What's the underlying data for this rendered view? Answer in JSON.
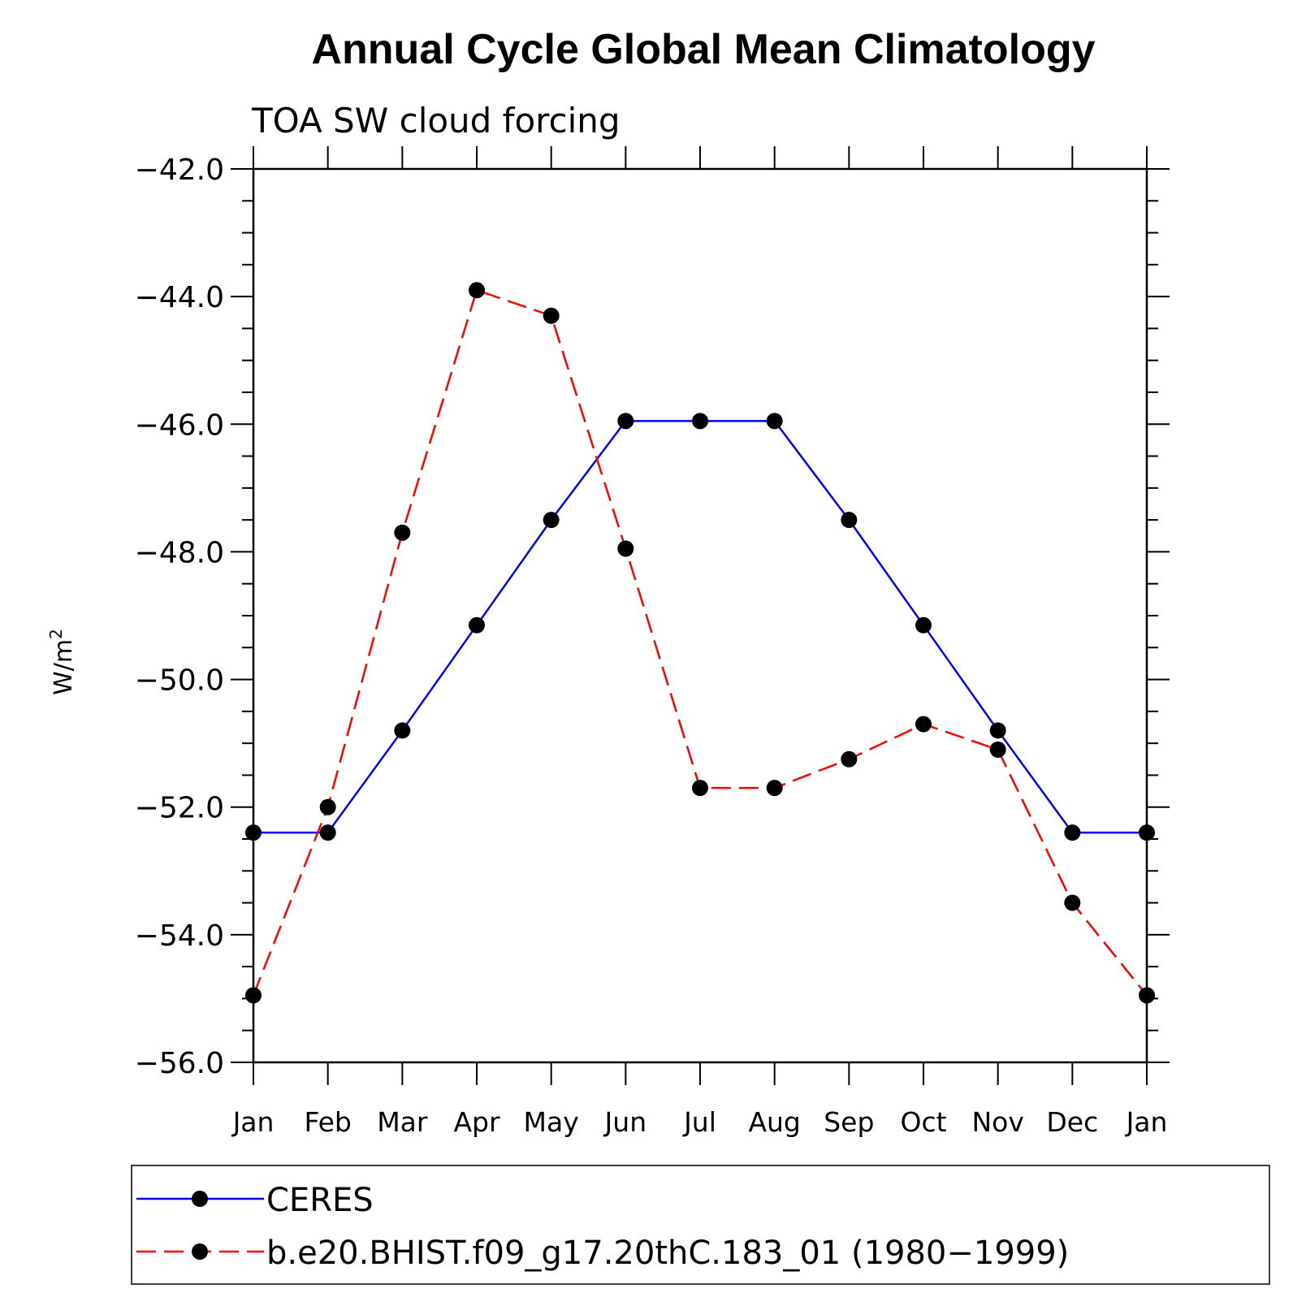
{
  "chart_data": {
    "type": "line",
    "title": "Annual Cycle Global Mean Climatology",
    "subtitle": "TOA SW cloud forcing",
    "xlabel": "",
    "ylabel": "W/m",
    "ylabel_superscript": "2",
    "ylim": [
      -56.0,
      -42.0
    ],
    "y_major_ticks": [
      -42.0,
      -44.0,
      -46.0,
      -48.0,
      -50.0,
      -52.0,
      -54.0,
      -56.0
    ],
    "y_tick_labels": [
      "−42.0",
      "−44.0",
      "−46.0",
      "−48.0",
      "−50.0",
      "−52.0",
      "−54.0",
      "−56.0"
    ],
    "y_minor_step": 0.5,
    "categories": [
      "Jan",
      "Feb",
      "Mar",
      "Apr",
      "May",
      "Jun",
      "Jul",
      "Aug",
      "Sep",
      "Oct",
      "Nov",
      "Dec",
      "Jan"
    ],
    "grid": false,
    "legend_position": "bottom",
    "series": [
      {
        "name": "CERES",
        "color": "#0000ff",
        "dash": "solid",
        "marker": "filled-circle",
        "values": [
          -52.4,
          -52.4,
          -50.8,
          -49.15,
          -47.5,
          -45.95,
          -45.95,
          -45.95,
          -47.5,
          -49.15,
          -50.8,
          -52.4,
          -52.4
        ]
      },
      {
        "name": "b.e20.BHIST.f09_g17.20thC.183_01 (1980−1999)",
        "color": "#ff0000",
        "dash": "dashed",
        "marker": "filled-circle",
        "values": [
          -54.95,
          -52.0,
          -47.7,
          -43.9,
          -44.3,
          -47.95,
          -51.7,
          -51.7,
          -51.25,
          -50.7,
          -51.1,
          -53.5,
          -54.95
        ]
      }
    ]
  }
}
